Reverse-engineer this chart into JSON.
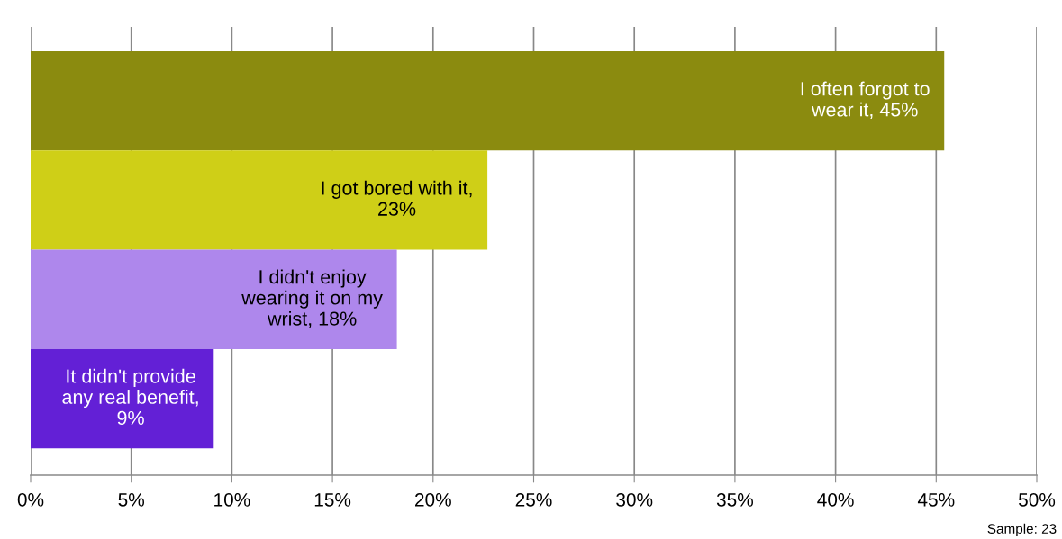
{
  "chart_data": {
    "type": "bar",
    "orientation": "horizontal",
    "categories": [
      null,
      null,
      null,
      null
    ],
    "values": [
      45.4,
      22.7,
      18.2,
      9.1
    ],
    "colors": [
      "#8b8b0f",
      "#cfcf17",
      "#ae87ec",
      "#6320d6"
    ],
    "value_labels": [
      "I often forgot to\nwear it, 45%",
      "I got bored with it,\n23%",
      "I didn't enjoy\nwearing it on my\nwrist, 18%",
      "It didn't provide\nany real benefit,\n9%"
    ],
    "xlim": [
      0,
      50
    ],
    "xticks": [
      {
        "value": 0,
        "label": "0%"
      },
      {
        "value": 5,
        "label": "5%"
      },
      {
        "value": 10,
        "label": "10%"
      },
      {
        "value": 15,
        "label": "15%"
      },
      {
        "value": 20,
        "label": "20%"
      },
      {
        "value": 25,
        "label": "25%"
      },
      {
        "value": 30,
        "label": "30%"
      },
      {
        "value": 35,
        "label": "35%"
      },
      {
        "value": 40,
        "label": "40%"
      },
      {
        "value": 45,
        "label": "45%"
      },
      {
        "value": 50,
        "label": "50%"
      }
    ],
    "grid": "x",
    "legend": false,
    "annotations": [
      "Sample: 23"
    ]
  }
}
